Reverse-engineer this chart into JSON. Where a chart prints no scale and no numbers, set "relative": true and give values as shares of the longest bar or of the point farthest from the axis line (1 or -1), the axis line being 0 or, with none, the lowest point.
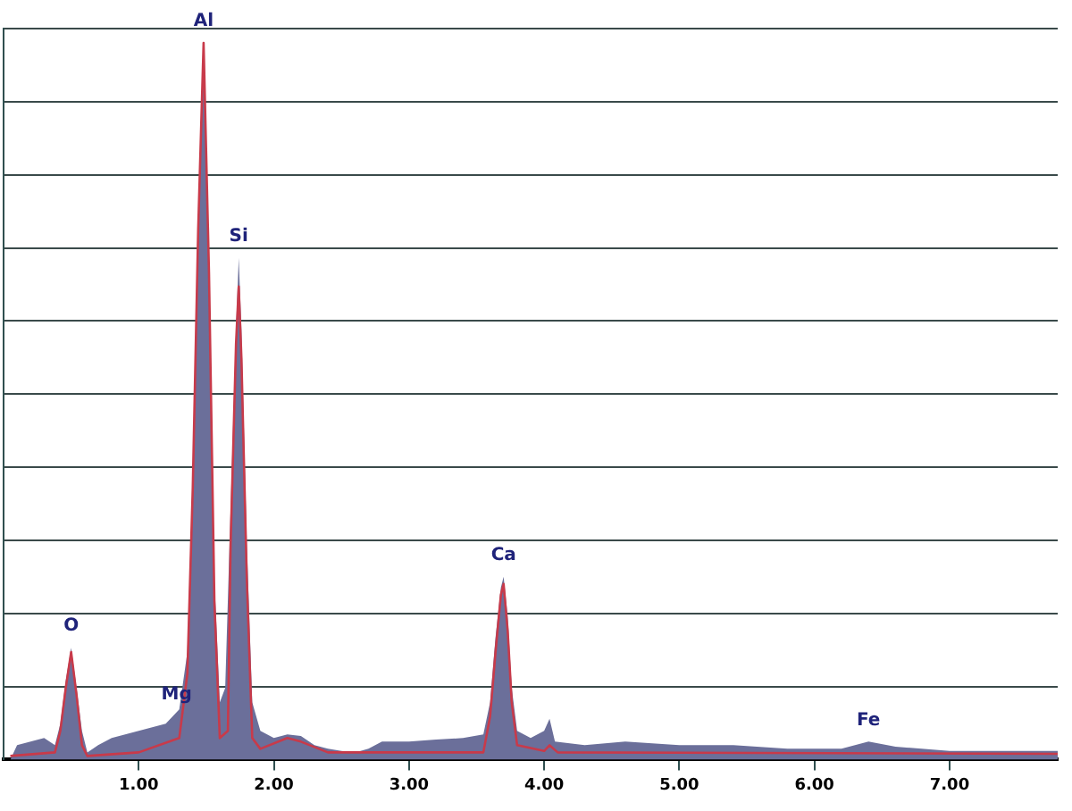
{
  "chart_data": {
    "type": "area",
    "relative": true,
    "grid": "y",
    "marker": "none",
    "xlim": [
      0,
      7.8
    ],
    "xticks": [
      {
        "value": 1,
        "label": "1.00"
      },
      {
        "value": 2,
        "label": "2.00"
      },
      {
        "value": 3,
        "label": "3.00"
      },
      {
        "value": 4,
        "label": "4.00"
      },
      {
        "value": 5,
        "label": "5.00"
      },
      {
        "value": 6,
        "label": "6.00"
      },
      {
        "value": 7,
        "label": "7.00"
      }
    ],
    "series": [
      {
        "type": "area",
        "color": "#6b6f9a",
        "x": [
          0.05,
          0.1,
          0.2,
          0.3,
          0.38,
          0.42,
          0.46,
          0.5,
          0.54,
          0.58,
          0.62,
          0.7,
          0.8,
          0.9,
          1.0,
          1.1,
          1.2,
          1.3,
          1.36,
          1.4,
          1.44,
          1.48,
          1.52,
          1.56,
          1.6,
          1.64,
          1.68,
          1.72,
          1.74,
          1.76,
          1.8,
          1.84,
          1.9,
          2.0,
          2.1,
          2.2,
          2.3,
          2.4,
          2.5,
          2.6,
          2.7,
          2.8,
          3.0,
          3.2,
          3.4,
          3.55,
          3.6,
          3.64,
          3.68,
          3.7,
          3.73,
          3.76,
          3.8,
          3.9,
          4.0,
          4.04,
          4.08,
          4.3,
          4.6,
          5.0,
          5.4,
          5.8,
          6.2,
          6.4,
          6.6,
          7.0,
          7.4,
          7.8
        ],
        "values": [
          0.0,
          0.02,
          0.025,
          0.03,
          0.02,
          0.05,
          0.11,
          0.156,
          0.1,
          0.04,
          0.01,
          0.02,
          0.03,
          0.035,
          0.04,
          0.045,
          0.05,
          0.07,
          0.15,
          0.4,
          0.75,
          1.0,
          0.7,
          0.25,
          0.08,
          0.1,
          0.35,
          0.6,
          0.7,
          0.6,
          0.3,
          0.08,
          0.04,
          0.03,
          0.035,
          0.033,
          0.02,
          0.015,
          0.012,
          0.01,
          0.015,
          0.025,
          0.025,
          0.028,
          0.03,
          0.035,
          0.08,
          0.17,
          0.24,
          0.255,
          0.2,
          0.1,
          0.04,
          0.03,
          0.04,
          0.057,
          0.025,
          0.02,
          0.025,
          0.02,
          0.02,
          0.015,
          0.015,
          0.025,
          0.018,
          0.012,
          0.012,
          0.012
        ]
      },
      {
        "type": "line",
        "color": "#c83a4a",
        "x": [
          0.05,
          0.38,
          0.42,
          0.46,
          0.5,
          0.54,
          0.58,
          0.62,
          1.0,
          1.3,
          1.36,
          1.4,
          1.44,
          1.48,
          1.52,
          1.56,
          1.6,
          1.66,
          1.68,
          1.72,
          1.74,
          1.76,
          1.8,
          1.84,
          1.9,
          2.1,
          2.2,
          2.4,
          3.55,
          3.6,
          3.64,
          3.68,
          3.7,
          3.73,
          3.76,
          3.8,
          4.0,
          4.04,
          4.1,
          7.8
        ],
        "values": [
          0.005,
          0.01,
          0.04,
          0.1,
          0.15,
          0.09,
          0.02,
          0.005,
          0.01,
          0.03,
          0.12,
          0.38,
          0.74,
          1.0,
          0.68,
          0.22,
          0.03,
          0.04,
          0.3,
          0.58,
          0.66,
          0.56,
          0.25,
          0.03,
          0.015,
          0.03,
          0.025,
          0.01,
          0.01,
          0.06,
          0.15,
          0.23,
          0.245,
          0.18,
          0.08,
          0.02,
          0.012,
          0.02,
          0.01,
          0.008
        ]
      }
    ],
    "annotations": [
      {
        "text": "O",
        "x": 0.5,
        "y": 0.156
      },
      {
        "text": "Mg",
        "x": 1.28,
        "y": 0.06
      },
      {
        "text": "Al",
        "x": 1.48,
        "y": 1.0
      },
      {
        "text": "Si",
        "x": 1.74,
        "y": 0.7
      },
      {
        "text": "Ca",
        "x": 3.7,
        "y": 0.255
      },
      {
        "text": "Fe",
        "x": 6.4,
        "y": 0.025
      }
    ]
  }
}
